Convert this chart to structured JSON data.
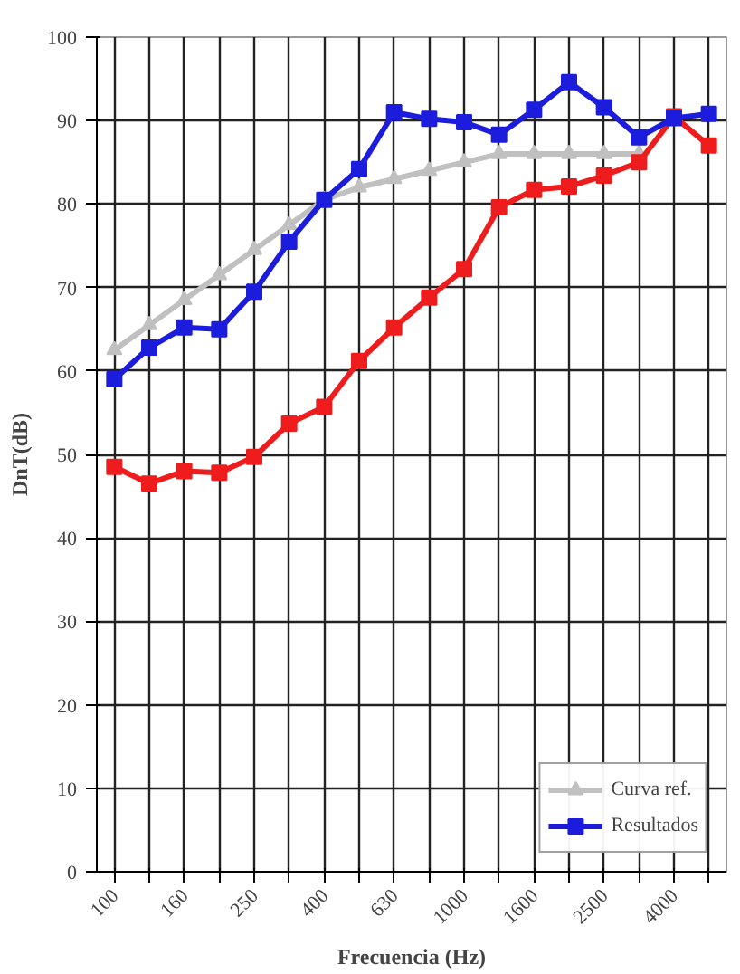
{
  "chart_data": {
    "type": "line",
    "xlabel": "Frecuencia (Hz)",
    "ylabel": "DnT(dB)",
    "categories": [
      "100",
      null,
      "160",
      null,
      "250",
      null,
      "400",
      null,
      "630",
      null,
      "1000",
      null,
      "1600",
      null,
      "2500",
      null,
      "4000",
      null
    ],
    "ylim": [
      0,
      100
    ],
    "yticks": [
      0,
      10,
      20,
      30,
      40,
      50,
      60,
      70,
      80,
      90,
      100
    ],
    "grid": true,
    "legend": "bottom right",
    "line_style": "solid",
    "series": [
      {
        "name": "Curva ref.",
        "color": "#c0c0c0",
        "marker": "triangle",
        "values": [
          62.5,
          65.5,
          68.5,
          71.5,
          74.5,
          77.5,
          80.5,
          82,
          83,
          84,
          85,
          86,
          86,
          86,
          86,
          86,
          null,
          null
        ]
      },
      {
        "color": "#ee1c1c",
        "marker": "square",
        "values": [
          48.5,
          46.5,
          48,
          47.8,
          49.7,
          53.7,
          55.7,
          61.2,
          65.2,
          68.8,
          72.2,
          79.6,
          81.7,
          82.1,
          83.4,
          85,
          90.5,
          87
        ]
      },
      {
        "name": "Resultados",
        "color": "#1c1cdc",
        "marker": "square",
        "values": [
          59,
          62.8,
          65.2,
          65,
          69.5,
          75.5,
          80.5,
          84.2,
          91,
          90.2,
          89.8,
          88.3,
          91.3,
          94.6,
          91.6,
          88,
          90.3,
          90.8
        ]
      }
    ]
  }
}
